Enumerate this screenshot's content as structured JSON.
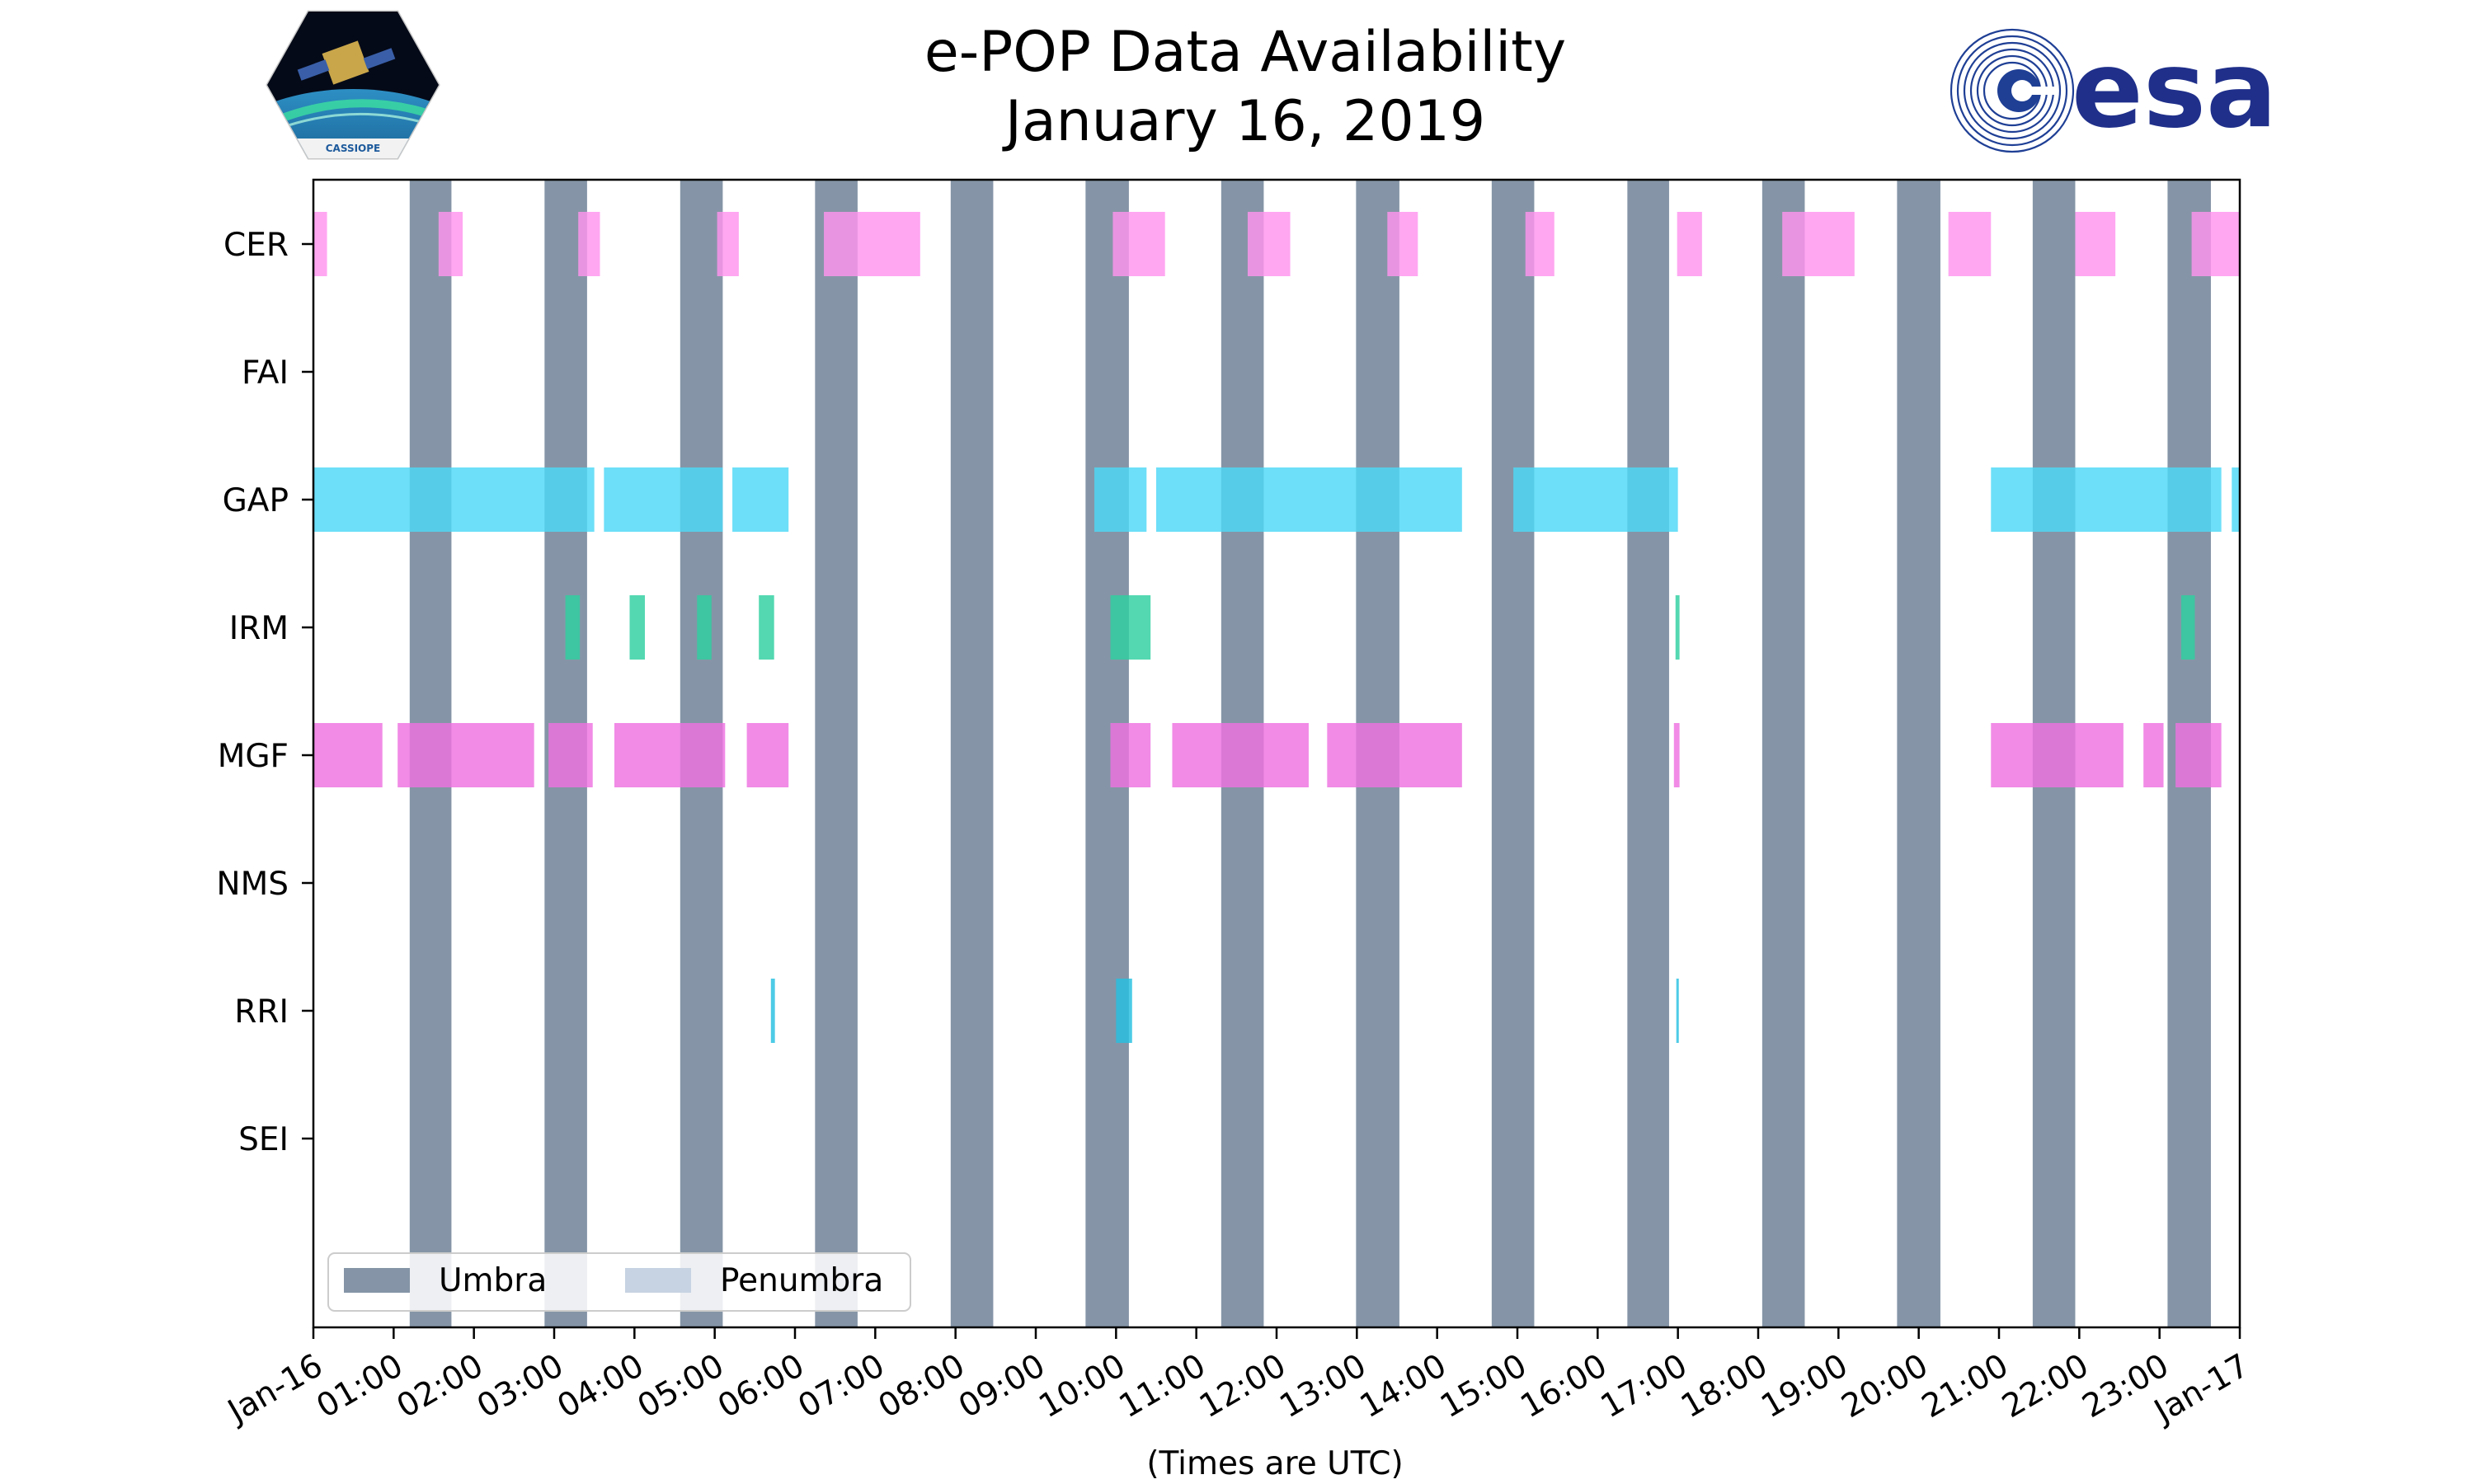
{
  "logos": {
    "left_mission": "CASSIOPE",
    "right_agency": "esa"
  },
  "chart_data": {
    "type": "timeline",
    "title": [
      "e-POP Data Availability",
      "January 16, 2019"
    ],
    "xlabel": "(Times are UTC)",
    "x_unit": "hours UTC",
    "xlim": [
      0,
      24
    ],
    "xticks": [
      0,
      1,
      2,
      3,
      4,
      5,
      6,
      7,
      8,
      9,
      10,
      11,
      12,
      13,
      14,
      15,
      16,
      17,
      18,
      19,
      20,
      21,
      22,
      23,
      24
    ],
    "xtick_labels": [
      "Jan-16",
      "01:00",
      "02:00",
      "03:00",
      "04:00",
      "05:00",
      "06:00",
      "07:00",
      "08:00",
      "09:00",
      "10:00",
      "11:00",
      "12:00",
      "13:00",
      "14:00",
      "15:00",
      "16:00",
      "17:00",
      "18:00",
      "19:00",
      "20:00",
      "21:00",
      "22:00",
      "23:00",
      "Jan-17"
    ],
    "categories": [
      "CER",
      "FAI",
      "GAP",
      "IRM",
      "MGF",
      "NMS",
      "RRI",
      "SEI"
    ],
    "umbra": [
      [
        1.2,
        1.72
      ],
      [
        2.88,
        3.41
      ],
      [
        4.57,
        5.1
      ],
      [
        6.25,
        6.78
      ],
      [
        7.94,
        8.47
      ],
      [
        9.62,
        10.16
      ],
      [
        11.31,
        11.84
      ],
      [
        12.99,
        13.53
      ],
      [
        14.68,
        15.21
      ],
      [
        16.37,
        16.89
      ],
      [
        18.05,
        18.58
      ],
      [
        19.73,
        20.27
      ],
      [
        21.42,
        21.95
      ],
      [
        23.1,
        23.64
      ]
    ],
    "penumbra": [],
    "series": [
      {
        "name": "CER",
        "color": "#ff94ee",
        "intervals": [
          [
            0.0,
            0.17
          ],
          [
            1.56,
            1.86
          ],
          [
            3.3,
            3.57
          ],
          [
            5.03,
            5.3
          ],
          [
            6.36,
            7.56
          ],
          [
            9.96,
            10.61
          ],
          [
            11.64,
            12.17
          ],
          [
            13.38,
            13.76
          ],
          [
            15.1,
            15.46
          ],
          [
            16.99,
            17.3
          ],
          [
            18.3,
            19.2
          ],
          [
            20.37,
            20.9
          ],
          [
            21.95,
            22.45
          ],
          [
            23.4,
            24.0
          ]
        ]
      },
      {
        "name": "FAI",
        "color": "#00bcd4",
        "intervals": []
      },
      {
        "name": "GAP",
        "color": "#4dd8f7",
        "intervals": [
          [
            0.0,
            3.5
          ],
          [
            3.62,
            5.1
          ],
          [
            5.22,
            5.92
          ],
          [
            9.73,
            10.38
          ],
          [
            10.5,
            14.31
          ],
          [
            14.95,
            17.0
          ],
          [
            20.9,
            23.77
          ],
          [
            23.9,
            24.0
          ]
        ]
      },
      {
        "name": "IRM",
        "color": "#2ecfa0",
        "intervals": [
          [
            3.14,
            3.32
          ],
          [
            3.94,
            4.13
          ],
          [
            4.78,
            4.96
          ],
          [
            5.55,
            5.74
          ],
          [
            9.93,
            10.43
          ],
          [
            16.97,
            17.02
          ],
          [
            23.27,
            23.44
          ]
        ]
      },
      {
        "name": "MGF",
        "color": "#ee72e0",
        "intervals": [
          [
            0.0,
            0.86
          ],
          [
            1.05,
            2.75
          ],
          [
            2.93,
            3.48
          ],
          [
            3.75,
            5.13
          ],
          [
            5.4,
            5.92
          ],
          [
            9.93,
            10.43
          ],
          [
            10.7,
            12.4
          ],
          [
            12.63,
            14.31
          ],
          [
            16.95,
            17.02
          ],
          [
            20.9,
            22.55
          ],
          [
            22.8,
            23.05
          ],
          [
            23.2,
            23.77
          ]
        ]
      },
      {
        "name": "NMS",
        "color": "#999999",
        "intervals": []
      },
      {
        "name": "RRI",
        "color": "#26c0e0",
        "intervals": [
          [
            5.7,
            5.75
          ],
          [
            10.0,
            10.2
          ],
          [
            16.98,
            17.01
          ]
        ]
      },
      {
        "name": "SEI",
        "color": "#999999",
        "intervals": []
      }
    ],
    "legend": {
      "placement": "lower-left",
      "entries": [
        "Umbra",
        "Penumbra"
      ],
      "colors": [
        "#8595a7",
        "#c7d3e2"
      ]
    },
    "umbra_color": "#8595a7"
  }
}
